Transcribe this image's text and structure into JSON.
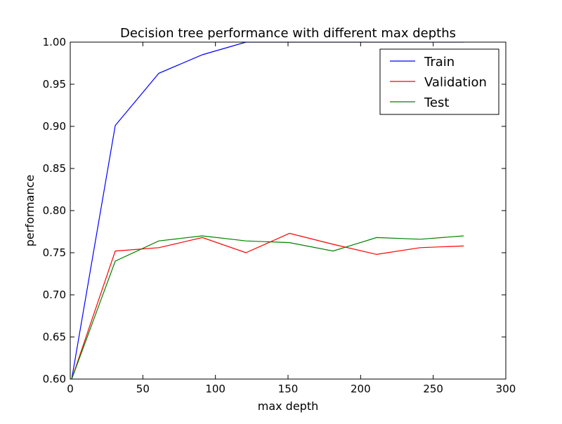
{
  "chart_data": {
    "type": "line",
    "title": "Decision tree performance with different max depths",
    "xlabel": "max depth",
    "ylabel": "performance",
    "xlim": [
      0,
      300
    ],
    "ylim": [
      0.6,
      1.0
    ],
    "x_ticks": [
      0,
      50,
      100,
      150,
      200,
      250,
      300
    ],
    "y_ticks": [
      0.6,
      0.65,
      0.7,
      0.75,
      0.8,
      0.85,
      0.9,
      0.95,
      1.0
    ],
    "x_tick_labels": [
      "0",
      "50",
      "100",
      "150",
      "200",
      "250",
      "300"
    ],
    "y_tick_labels": [
      "0.60",
      "0.65",
      "0.70",
      "0.75",
      "0.80",
      "0.85",
      "0.90",
      "0.95",
      "1.00"
    ],
    "grid": false,
    "legend_position": "top-right",
    "x": [
      1,
      31,
      61,
      91,
      121,
      151,
      181,
      211,
      241,
      271
    ],
    "series": [
      {
        "name": "Train",
        "color": "#0000ff",
        "values": [
          0.6,
          0.901,
          0.963,
          0.985,
          1.0,
          1.0,
          1.0,
          1.0,
          1.0,
          1.0
        ]
      },
      {
        "name": "Validation",
        "color": "#ff0000",
        "values": [
          0.6,
          0.752,
          0.756,
          0.768,
          0.75,
          0.773,
          0.76,
          0.748,
          0.756,
          0.758
        ]
      },
      {
        "name": "Test",
        "color": "#008000",
        "values": [
          0.6,
          0.74,
          0.764,
          0.77,
          0.764,
          0.762,
          0.752,
          0.768,
          0.766,
          0.77
        ]
      }
    ]
  }
}
